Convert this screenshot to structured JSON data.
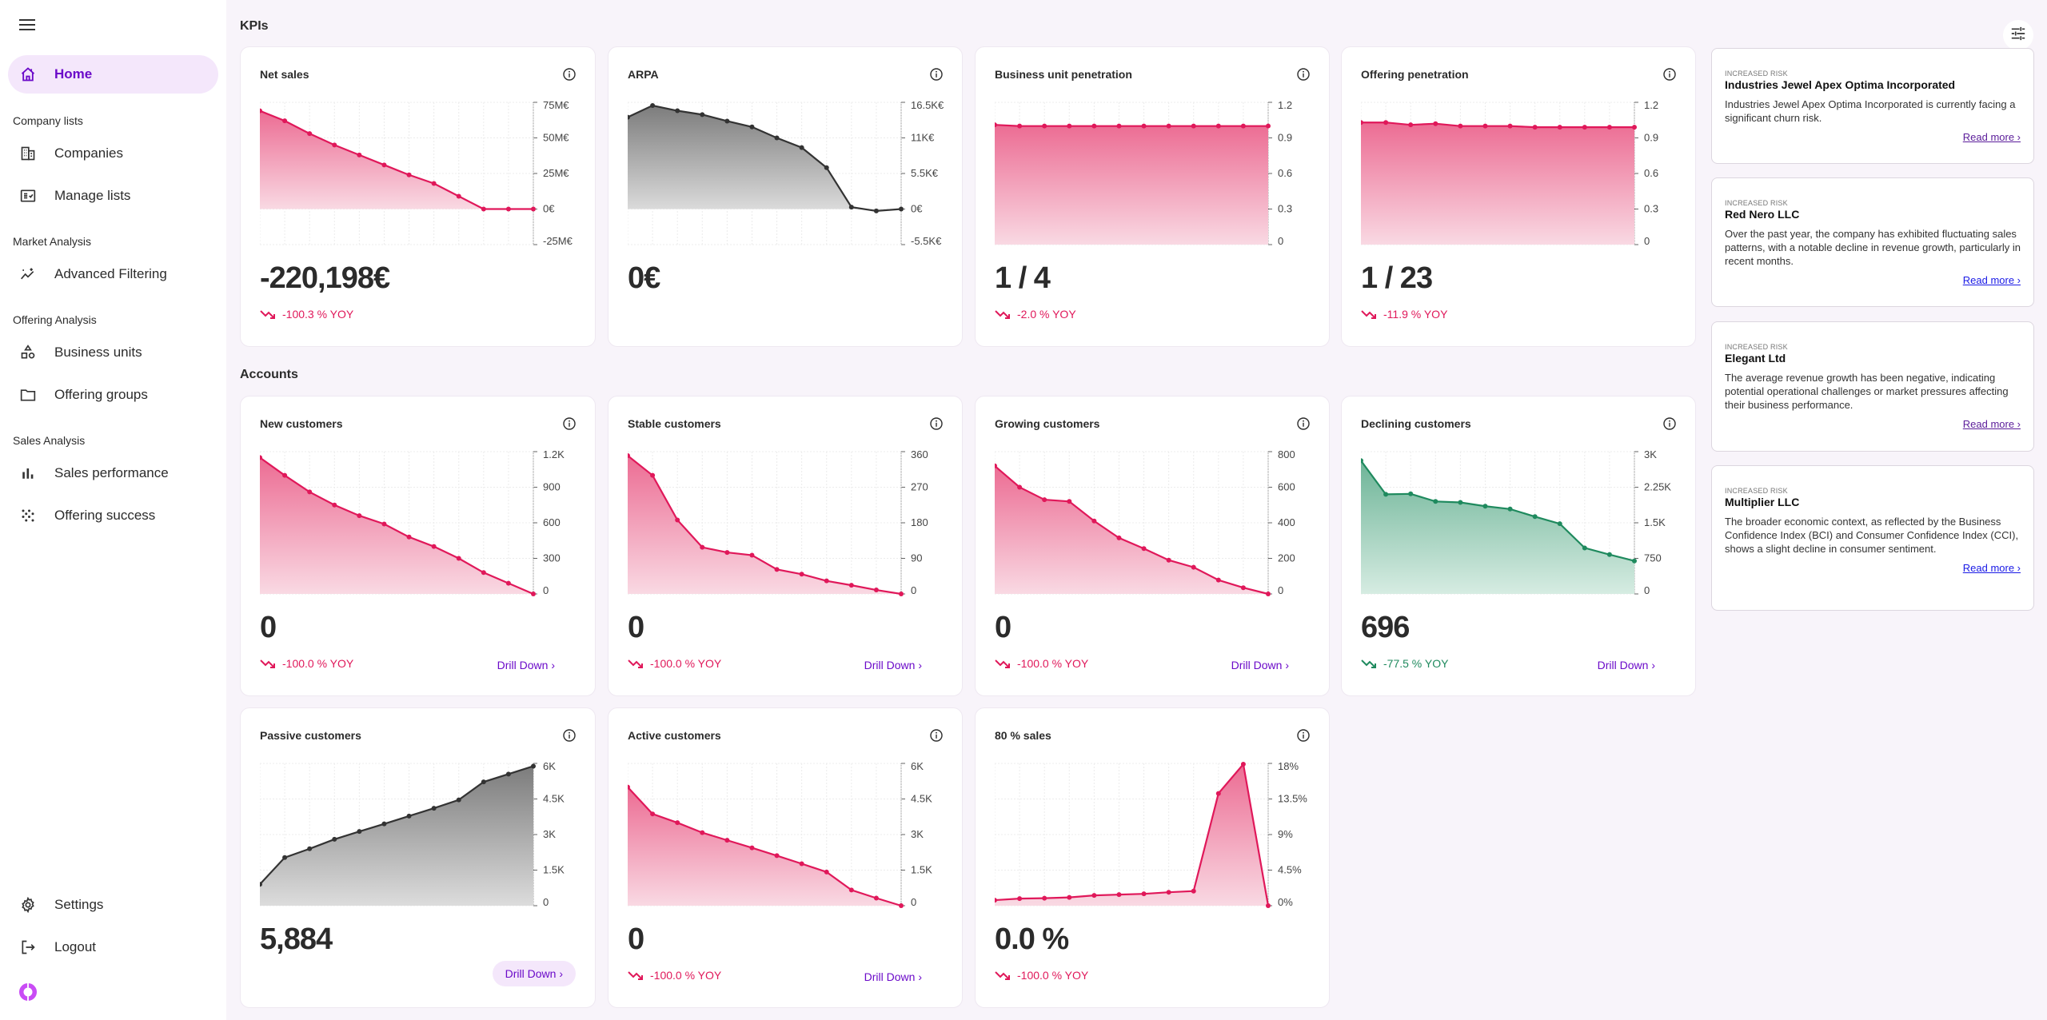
{
  "sidebar": {
    "items": [
      {
        "label": "Home",
        "icon": "home-icon",
        "active": true
      },
      {
        "section": "Company lists"
      },
      {
        "label": "Companies",
        "icon": "building-icon"
      },
      {
        "label": "Manage lists",
        "icon": "checklist-icon"
      },
      {
        "section": "Market Analysis"
      },
      {
        "label": "Advanced Filtering",
        "icon": "sparkle-chart-icon"
      },
      {
        "section": "Offering Analysis"
      },
      {
        "label": "Business units",
        "icon": "shapes-icon"
      },
      {
        "label": "Offering groups",
        "icon": "folder-icon"
      },
      {
        "section": "Sales Analysis"
      },
      {
        "label": "Sales performance",
        "icon": "bar-chart-icon"
      },
      {
        "label": "Offering success",
        "icon": "scatter-dots-icon"
      }
    ],
    "bottom": [
      {
        "label": "Settings",
        "icon": "gear-icon"
      },
      {
        "label": "Logout",
        "icon": "logout-icon"
      }
    ],
    "labels": {
      "home": "Home",
      "company_lists": "Company lists",
      "companies": "Companies",
      "manage_lists": "Manage lists",
      "market_analysis": "Market Analysis",
      "advanced_filtering": "Advanced Filtering",
      "offering_analysis": "Offering Analysis",
      "business_units": "Business units",
      "offering_groups": "Offering groups",
      "sales_analysis": "Sales Analysis",
      "sales_performance": "Sales performance",
      "offering_success": "Offering success",
      "settings": "Settings",
      "logout": "Logout"
    }
  },
  "colors": {
    "accent": "#6b0ac9",
    "negative": "#e0185a",
    "positive": "#1f8a5e",
    "neutral": "#3a3a3a",
    "active_bg": "#f4e7fb",
    "page_bg": "#f8f4fa"
  },
  "sections": {
    "kpis": "KPIs",
    "accounts": "Accounts"
  },
  "drill_label": "Drill Down ›",
  "chart_data": [
    {
      "id": "net-sales",
      "type": "area",
      "title": "Net sales",
      "color": "negative",
      "x": [
        1,
        2,
        3,
        4,
        5,
        6,
        7,
        8,
        9,
        10,
        11,
        12
      ],
      "values": [
        69000000,
        62000000,
        53000000,
        45000000,
        38000000,
        31000000,
        24000000,
        18000000,
        9000000,
        0,
        0,
        0
      ],
      "ylim": [
        -25000000,
        75000000
      ],
      "ticks": [
        {
          "v": 75000000,
          "label": "75M€"
        },
        {
          "v": 50000000,
          "label": "50M€"
        },
        {
          "v": 25000000,
          "label": "25M€"
        },
        {
          "v": 0,
          "label": "0€"
        },
        {
          "v": -25000000,
          "label": "-25M€"
        }
      ],
      "value": "-220,198€",
      "yoy": "-100.3 % YOY",
      "yoy_color": "negative",
      "drill": false
    },
    {
      "id": "arpa",
      "type": "area",
      "title": "ARPA",
      "color": "neutral",
      "x": [
        1,
        2,
        3,
        4,
        5,
        6,
        7,
        8,
        9,
        10,
        11,
        12
      ],
      "values": [
        14200,
        16000,
        15200,
        14600,
        13600,
        12700,
        11000,
        9500,
        6400,
        300,
        -300,
        0
      ],
      "ylim": [
        -5500,
        16500
      ],
      "ticks": [
        {
          "v": 16500,
          "label": "16.5K€"
        },
        {
          "v": 11000,
          "label": "11K€"
        },
        {
          "v": 5500,
          "label": "5.5K€"
        },
        {
          "v": 0,
          "label": "0€"
        },
        {
          "v": -5500,
          "label": "-5.5K€"
        }
      ],
      "value": "0€",
      "yoy": "",
      "yoy_color": "",
      "drill": false
    },
    {
      "id": "business-unit-penetration",
      "type": "area",
      "title": "Business unit penetration",
      "color": "negative",
      "x": [
        1,
        2,
        3,
        4,
        5,
        6,
        7,
        8,
        9,
        10,
        11,
        12
      ],
      "values": [
        1.01,
        1.0,
        1.0,
        1.0,
        1.0,
        1.0,
        1.0,
        1.0,
        1.0,
        1.0,
        1.0,
        1.0
      ],
      "ylim": [
        0,
        1.2
      ],
      "ticks": [
        {
          "v": 1.2,
          "label": "1.2"
        },
        {
          "v": 0.9,
          "label": "0.9"
        },
        {
          "v": 0.6,
          "label": "0.6"
        },
        {
          "v": 0.3,
          "label": "0.3"
        },
        {
          "v": 0,
          "label": "0"
        }
      ],
      "value": "1 / 4",
      "yoy": "-2.0 % YOY",
      "yoy_color": "negative",
      "drill": false
    },
    {
      "id": "offering-penetration",
      "type": "area",
      "title": "Offering penetration",
      "color": "negative",
      "x": [
        1,
        2,
        3,
        4,
        5,
        6,
        7,
        8,
        9,
        10,
        11,
        12
      ],
      "values": [
        1.03,
        1.03,
        1.01,
        1.02,
        1.0,
        1.0,
        1.0,
        0.99,
        0.99,
        0.99,
        0.99,
        0.99
      ],
      "ylim": [
        0,
        1.2
      ],
      "ticks": [
        {
          "v": 1.2,
          "label": "1.2"
        },
        {
          "v": 0.9,
          "label": "0.9"
        },
        {
          "v": 0.6,
          "label": "0.6"
        },
        {
          "v": 0.3,
          "label": "0.3"
        },
        {
          "v": 0,
          "label": "0"
        }
      ],
      "value": "1 / 23",
      "yoy": "-11.9 % YOY",
      "yoy_color": "negative",
      "drill": false
    },
    {
      "id": "new-customers",
      "type": "area",
      "title": "New customers",
      "color": "negative",
      "x": [
        1,
        2,
        3,
        4,
        5,
        6,
        7,
        8,
        9,
        10,
        11,
        12
      ],
      "values": [
        1150,
        1000,
        860,
        750,
        660,
        590,
        480,
        400,
        300,
        180,
        90,
        0
      ],
      "ylim": [
        0,
        1200
      ],
      "ticks": [
        {
          "v": 1200,
          "label": "1.2K"
        },
        {
          "v": 900,
          "label": "900"
        },
        {
          "v": 600,
          "label": "600"
        },
        {
          "v": 300,
          "label": "300"
        },
        {
          "v": 0,
          "label": "0"
        }
      ],
      "value": "0",
      "yoy": "-100.0 % YOY",
      "yoy_color": "negative",
      "drill": true
    },
    {
      "id": "stable-customers",
      "type": "area",
      "title": "Stable customers",
      "color": "negative",
      "x": [
        1,
        2,
        3,
        4,
        5,
        6,
        7,
        8,
        9,
        10,
        11,
        12
      ],
      "values": [
        350,
        300,
        187,
        118,
        105,
        98,
        62,
        50,
        33,
        22,
        10,
        0
      ],
      "ylim": [
        0,
        360
      ],
      "ticks": [
        {
          "v": 360,
          "label": "360"
        },
        {
          "v": 270,
          "label": "270"
        },
        {
          "v": 180,
          "label": "180"
        },
        {
          "v": 90,
          "label": "90"
        },
        {
          "v": 0,
          "label": "0"
        }
      ],
      "value": "0",
      "yoy": "-100.0 % YOY",
      "yoy_color": "negative",
      "drill": true
    },
    {
      "id": "growing-customers",
      "type": "area",
      "title": "Growing customers",
      "color": "negative",
      "x": [
        1,
        2,
        3,
        4,
        5,
        6,
        7,
        8,
        9,
        10,
        11,
        12
      ],
      "values": [
        720,
        600,
        530,
        520,
        410,
        315,
        255,
        190,
        150,
        78,
        35,
        0
      ],
      "ylim": [
        0,
        800
      ],
      "ticks": [
        {
          "v": 800,
          "label": "800"
        },
        {
          "v": 600,
          "label": "600"
        },
        {
          "v": 400,
          "label": "400"
        },
        {
          "v": 200,
          "label": "200"
        },
        {
          "v": 0,
          "label": "0"
        }
      ],
      "value": "0",
      "yoy": "-100.0 % YOY",
      "yoy_color": "negative",
      "drill": true
    },
    {
      "id": "declining-customers",
      "type": "area",
      "title": "Declining customers",
      "color": "positive",
      "x": [
        1,
        2,
        3,
        4,
        5,
        6,
        7,
        8,
        9,
        10,
        11,
        12
      ],
      "values": [
        2810,
        2100,
        2110,
        1950,
        1930,
        1850,
        1790,
        1630,
        1480,
        970,
        830,
        696
      ],
      "ylim": [
        0,
        3000
      ],
      "ticks": [
        {
          "v": 3000,
          "label": "3K"
        },
        {
          "v": 2250,
          "label": "2.25K"
        },
        {
          "v": 1500,
          "label": "1.5K"
        },
        {
          "v": 750,
          "label": "750"
        },
        {
          "v": 0,
          "label": "0"
        }
      ],
      "value": "696",
      "yoy": "-77.5 % YOY",
      "yoy_color": "positive",
      "drill": true
    },
    {
      "id": "passive-customers",
      "type": "area",
      "title": "Passive customers",
      "color": "neutral",
      "x": [
        1,
        2,
        3,
        4,
        5,
        6,
        7,
        8,
        9,
        10,
        11,
        12
      ],
      "values": [
        900,
        2030,
        2400,
        2800,
        3130,
        3450,
        3780,
        4110,
        4460,
        5220,
        5550,
        5884
      ],
      "ylim": [
        0,
        6000
      ],
      "ticks": [
        {
          "v": 6000,
          "label": "6K"
        },
        {
          "v": 4500,
          "label": "4.5K"
        },
        {
          "v": 3000,
          "label": "3K"
        },
        {
          "v": 1500,
          "label": "1.5K"
        },
        {
          "v": 0,
          "label": "0"
        }
      ],
      "value": "5,884",
      "yoy": "",
      "yoy_color": "",
      "drill": true,
      "drill_hover": true
    },
    {
      "id": "active-customers",
      "type": "area",
      "title": "Active customers",
      "color": "negative",
      "x": [
        1,
        2,
        3,
        4,
        5,
        6,
        7,
        8,
        9,
        10,
        11,
        12
      ],
      "values": [
        5000,
        3870,
        3500,
        3080,
        2760,
        2440,
        2110,
        1770,
        1420,
        660,
        320,
        0
      ],
      "ylim": [
        0,
        6000
      ],
      "ticks": [
        {
          "v": 6000,
          "label": "6K"
        },
        {
          "v": 4500,
          "label": "4.5K"
        },
        {
          "v": 3000,
          "label": "3K"
        },
        {
          "v": 1500,
          "label": "1.5K"
        },
        {
          "v": 0,
          "label": "0"
        }
      ],
      "value": "0",
      "yoy": "-100.0 % YOY",
      "yoy_color": "negative",
      "drill": true
    },
    {
      "id": "eighty-percent-sales",
      "type": "area",
      "title": "80 % sales",
      "color": "negative",
      "x": [
        1,
        2,
        3,
        4,
        5,
        6,
        7,
        8,
        9,
        10,
        11,
        12
      ],
      "values": [
        0.7,
        0.9,
        0.95,
        1.05,
        1.3,
        1.4,
        1.5,
        1.7,
        1.85,
        14.2,
        17.9,
        0
      ],
      "ylim": [
        0,
        18
      ],
      "ticks": [
        {
          "v": 18,
          "label": "18%"
        },
        {
          "v": 13.5,
          "label": "13.5%"
        },
        {
          "v": 9,
          "label": "9%"
        },
        {
          "v": 4.5,
          "label": "4.5%"
        },
        {
          "v": 0,
          "label": "0%"
        }
      ],
      "value": "0.0 %",
      "yoy": "-100.0 % YOY",
      "yoy_color": "negative",
      "drill": false
    }
  ],
  "risks": [
    {
      "tag": "INCREASED RISK",
      "name": "Industries Jewel Apex Optima Incorporated",
      "desc": "Industries Jewel Apex Optima Incorporated is currently facing a significant churn risk.",
      "link": "Read more ›",
      "visited": true
    },
    {
      "tag": "INCREASED RISK",
      "name": "Red Nero LLC",
      "desc": "Over the past year, the company has exhibited fluctuating sales patterns, with a notable decline in revenue growth, particularly in recent months.",
      "link": "Read more ›",
      "visited": false
    },
    {
      "tag": "INCREASED RISK",
      "name": "Elegant Ltd",
      "desc": "The average revenue growth has been negative, indicating potential operational challenges or market pressures affecting their business performance.",
      "link": "Read more ›",
      "visited": true
    },
    {
      "tag": "INCREASED RISK",
      "name": "Multiplier LLC",
      "desc": "The broader economic context, as reflected by the Business Confidence Index (BCI) and Consumer Confidence Index (CCI), shows a slight decline in consumer sentiment.",
      "link": "Read more ›",
      "visited": false
    }
  ]
}
